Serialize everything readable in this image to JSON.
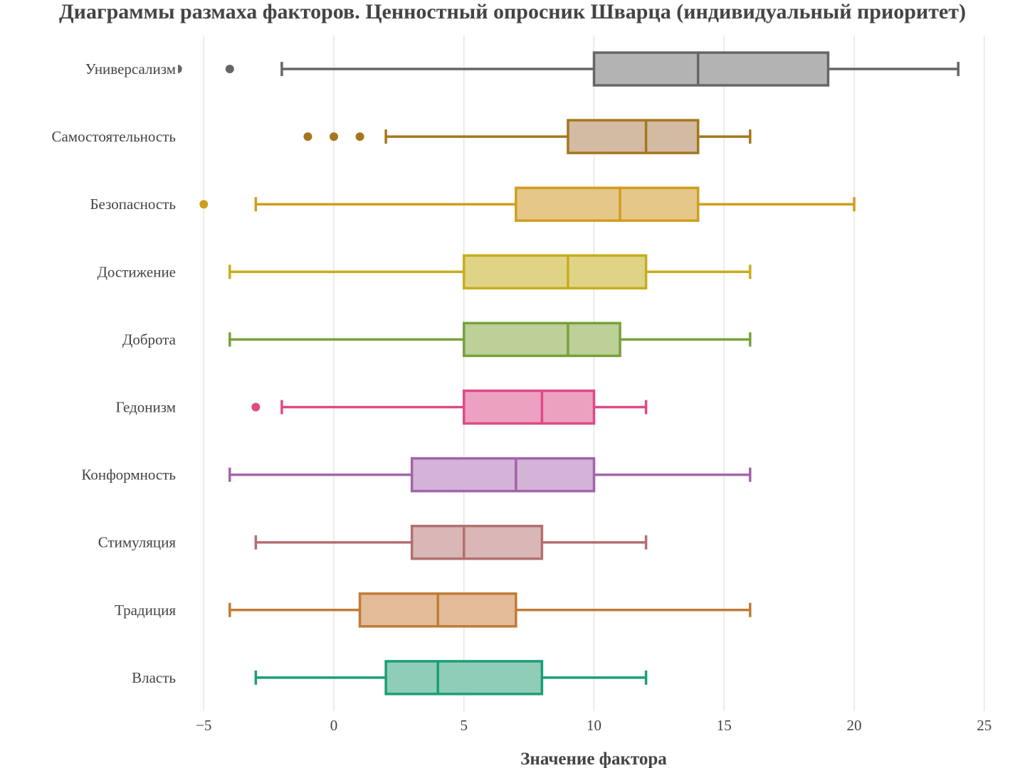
{
  "chart_data": {
    "type": "box",
    "orientation": "horizontal",
    "title": "Диаграммы размаха факторов. Ценностный опросник Шварца (индивидуальный приоритет)",
    "xlabel": "Значение фактора",
    "ylabel": "",
    "xlim": [
      -5.5,
      25.5
    ],
    "x_ticks": [
      -5,
      0,
      5,
      10,
      15,
      20,
      25
    ],
    "x_tick_labels": [
      "−5",
      "0",
      "5",
      "10",
      "15",
      "20",
      "25"
    ],
    "grid": "vertical",
    "legend": "none",
    "categories": [
      "Универсализм",
      "Самостоятельность",
      "Безопасность",
      "Достижение",
      "Доброта",
      "Гедонизм",
      "Конформность",
      "Стимуляция",
      "Традиция",
      "Власть"
    ],
    "series": [
      {
        "category": "Универсализм",
        "color": "#666666",
        "fill": "#b3b3b3",
        "whisker_low": -2,
        "q1": 10,
        "median": 14,
        "q3": 19,
        "whisker_high": 24,
        "outliers": [
          -4,
          -6
        ]
      },
      {
        "category": "Самостоятельность",
        "color": "#a6761d",
        "fill": "#d2bba2",
        "whisker_low": 2,
        "q1": 9,
        "median": 12,
        "q3": 14,
        "whisker_high": 16,
        "outliers": [
          -1,
          0,
          1
        ]
      },
      {
        "category": "Безопасность",
        "color": "#d09d1e",
        "fill": "#e6c78a",
        "whisker_low": -3,
        "q1": 7,
        "median": 11,
        "q3": 14,
        "whisker_high": 20,
        "outliers": [
          -5
        ]
      },
      {
        "category": "Достижение",
        "color": "#c7ad1c",
        "fill": "#dfd486",
        "whisker_low": -4,
        "q1": 5,
        "median": 9,
        "q3": 12,
        "whisker_high": 16,
        "outliers": []
      },
      {
        "category": "Доброта",
        "color": "#77a13a",
        "fill": "#bdd098",
        "whisker_low": -4,
        "q1": 5,
        "median": 9,
        "q3": 11,
        "whisker_high": 16,
        "outliers": []
      },
      {
        "category": "Гедонизм",
        "color": "#dd4a86",
        "fill": "#eda1c0",
        "whisker_low": -2,
        "q1": 5,
        "median": 8,
        "q3": 10,
        "whisker_high": 12,
        "outliers": [
          -3
        ]
      },
      {
        "category": "Конформность",
        "color": "#a263ac",
        "fill": "#d3b3d6",
        "whisker_low": -4,
        "q1": 3,
        "median": 7,
        "q3": 10,
        "whisker_high": 16,
        "outliers": []
      },
      {
        "category": "Стимуляция",
        "color": "#b46f6f",
        "fill": "#d9b7b6",
        "whisker_low": -3,
        "q1": 3,
        "median": 5,
        "q3": 8,
        "whisker_high": 12,
        "outliers": []
      },
      {
        "category": "Традиция",
        "color": "#c17b36",
        "fill": "#e2bc98",
        "whisker_low": -4,
        "q1": 1,
        "median": 4,
        "q3": 7,
        "whisker_high": 16,
        "outliers": []
      },
      {
        "category": "Власть",
        "color": "#1b9e77",
        "fill": "#8fcdb8",
        "whisker_low": -3,
        "q1": 2,
        "median": 4,
        "q3": 8,
        "whisker_high": 12,
        "outliers": []
      }
    ]
  }
}
